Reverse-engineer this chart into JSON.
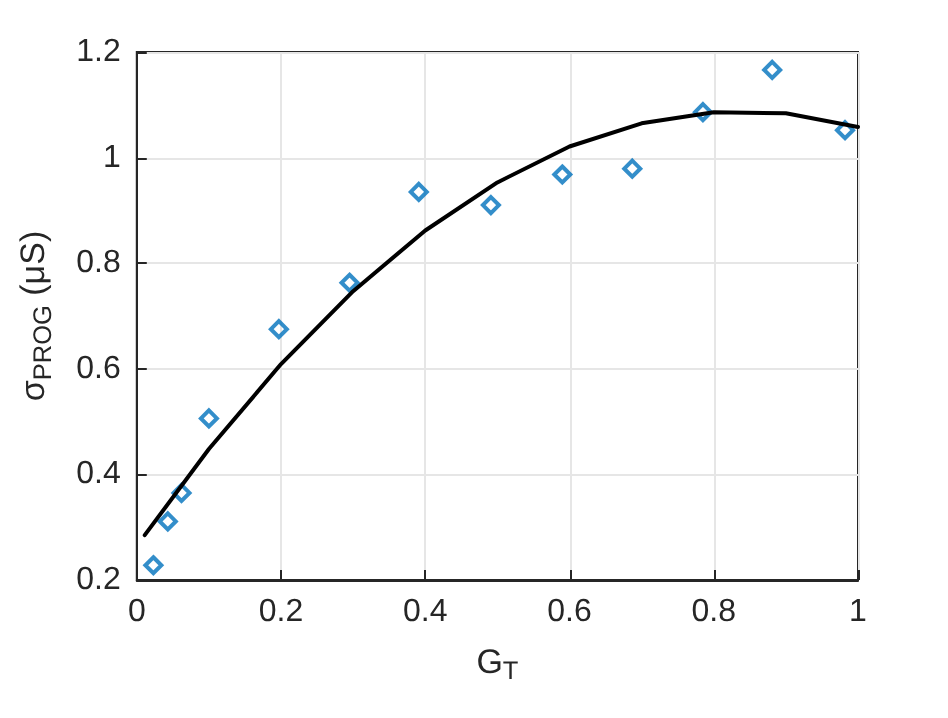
{
  "chart_data": {
    "type": "scatter",
    "xlabel": "G$_{T}$",
    "ylabel": "σ$_{PROG}$ (μS)",
    "xlim": [
      0,
      1
    ],
    "xticks": [
      0,
      0.2,
      0.4,
      0.6,
      0.8,
      1
    ],
    "ylim": [
      0.2,
      1.2
    ],
    "yticks": [
      0.2,
      0.4,
      0.6,
      0.8,
      1,
      1.2
    ],
    "grid": true,
    "series": [
      {
        "marker": "diamond",
        "color": "#0072bd",
        "x": [
          0.023,
          0.043,
          0.062,
          0.1,
          0.197,
          0.295,
          0.391,
          0.491,
          0.59,
          0.687,
          0.785,
          0.881,
          0.982
        ],
        "values": [
          0.228,
          0.311,
          0.365,
          0.506,
          0.675,
          0.763,
          0.935,
          0.91,
          0.968,
          0.979,
          1.086,
          1.166,
          1.052
        ]
      },
      {
        "type": "line",
        "marker": "none",
        "line_style": "solid",
        "color": "#000000",
        "x": [
          0.011,
          0.1,
          0.2,
          0.3,
          0.4,
          0.5,
          0.6,
          0.7,
          0.8,
          0.9,
          1.0
        ],
        "values": [
          0.285,
          0.448,
          0.609,
          0.747,
          0.862,
          0.953,
          1.021,
          1.065,
          1.086,
          1.084,
          1.058
        ]
      }
    ]
  }
}
